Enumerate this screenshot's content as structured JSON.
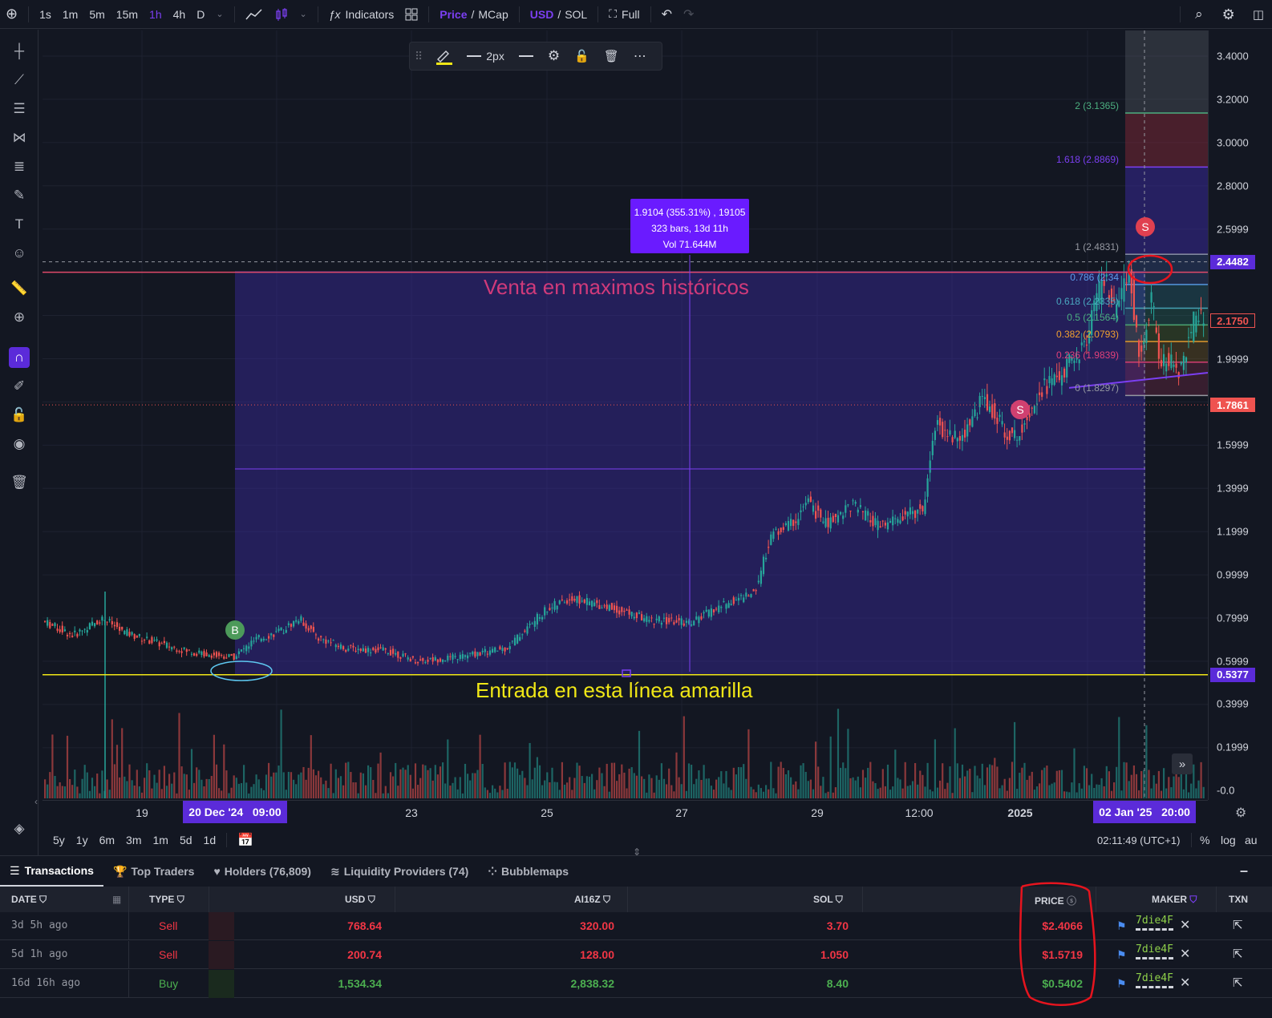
{
  "colors": {
    "accent": "#7b3ff2",
    "up": "#26a69a",
    "down": "#ef5350",
    "range": "#5b2bd9",
    "yellow": "#f0e716",
    "pink": "#e0407a"
  },
  "topbar": {
    "intervals": [
      "1s",
      "1m",
      "5m",
      "15m",
      "1h",
      "4h",
      "D"
    ],
    "active_interval": "1h",
    "indicators_label": "Indicators",
    "price_label": "Price",
    "mcap_label": "MCap",
    "usd_label": "USD",
    "sol_label": "SOL",
    "full_label": "Full",
    "slash": "/"
  },
  "drawbar": {
    "width_label": "2px"
  },
  "measure": {
    "line1": "1.9104 (355.31%) , 19105",
    "line2": "323 bars, 13d 11h",
    "line3": "Vol 71.644M"
  },
  "annotations": {
    "sell_text": "Venta en maximos históricos",
    "buy_text": "Entrada en esta línea amarilla",
    "buy_marker": "B",
    "sell_marker": "S"
  },
  "fib": [
    {
      "label": "2 (3.1365)",
      "value": 3.1365,
      "color": "#4caf80"
    },
    {
      "label": "1.618 (2.8869)",
      "value": 2.8869,
      "color": "#7b3ff2"
    },
    {
      "label": "1 (2.4831)",
      "value": 2.4831,
      "color": "#9598a1"
    },
    {
      "label": "0.786 (2.34",
      "value": 2.343,
      "color": "#5d9cec"
    },
    {
      "label": "0.618 (2.2335)",
      "value": 2.2335,
      "color": "#4aa8c0"
    },
    {
      "label": "0.5 (2.1564)",
      "value": 2.1564,
      "color": "#4caf80"
    },
    {
      "label": "0.382 (2.0793)",
      "value": 2.0793,
      "color": "#f0a030"
    },
    {
      "label": "0.236 (1.9839)",
      "value": 1.9839,
      "color": "#e0407a"
    },
    {
      "label": "0 (1.8297)",
      "value": 1.8297,
      "color": "#9598a1"
    }
  ],
  "price_axis": {
    "ticks": [
      "3.4000",
      "3.2000",
      "3.0000",
      "2.8000",
      "2.5999",
      "1.9999",
      "1.5999",
      "1.3999",
      "1.1999",
      "0.9999",
      "0.7999",
      "0.5999",
      "0.3999",
      "0.1999",
      "-0.0"
    ],
    "tags": [
      {
        "label": "2.4482",
        "value": 2.4482,
        "bg": "#5b2bd9",
        "fg": "#ffffff"
      },
      {
        "label": "2.1750",
        "value": 2.175,
        "bg": "#131722",
        "fg": "#ef5350"
      },
      {
        "label": "1.7861",
        "value": 1.7861,
        "bg": "#ef5350",
        "fg": "#ffffff"
      },
      {
        "label": "0.5377",
        "value": 0.5377,
        "bg": "#5b2bd9",
        "fg": "#ffffff"
      }
    ]
  },
  "time_axis": {
    "ticks": [
      "19",
      "23",
      "25",
      "27",
      "29",
      "12:00",
      "2025"
    ],
    "start_tag": "20 Dec '24   09:00",
    "end_tag": "02 Jan '25   20:00"
  },
  "rangebar": {
    "ranges": [
      "5y",
      "1y",
      "6m",
      "3m",
      "1m",
      "5d",
      "1d"
    ],
    "clock": "02:11:49 (UTC+1)",
    "pct": "%",
    "log": "log",
    "auto": "au"
  },
  "panel": {
    "tabs": [
      {
        "label": "Transactions",
        "icon": "list-icon"
      },
      {
        "label": "Top Traders",
        "icon": "trophy-icon"
      },
      {
        "label": "Holders (76,809)",
        "icon": "heart-icon"
      },
      {
        "label": "Liquidity Providers (74)",
        "icon": "lines-icon"
      },
      {
        "label": "Bubblemaps",
        "icon": "bubbles-icon"
      }
    ],
    "columns": {
      "date": "DATE",
      "type": "TYPE",
      "usd": "USD",
      "token": "AI16Z",
      "sol": "SOL",
      "price": "PRICE",
      "maker": "MAKER",
      "txn": "TXN"
    },
    "rows": [
      {
        "date": "3d 5h ago",
        "type": "Sell",
        "usd": "768.64",
        "token": "320.00",
        "sol": "3.70",
        "price": "$2.4066",
        "maker": "7die4F"
      },
      {
        "date": "5d 1h ago",
        "type": "Sell",
        "usd": "200.74",
        "token": "128.00",
        "sol": "1.050",
        "price": "$1.5719",
        "maker": "7die4F"
      },
      {
        "date": "16d 16h ago",
        "type": "Buy",
        "usd": "1,534.34",
        "token": "2,838.32",
        "sol": "8.40",
        "price": "$0.5402",
        "maker": "7die4F"
      }
    ]
  }
}
